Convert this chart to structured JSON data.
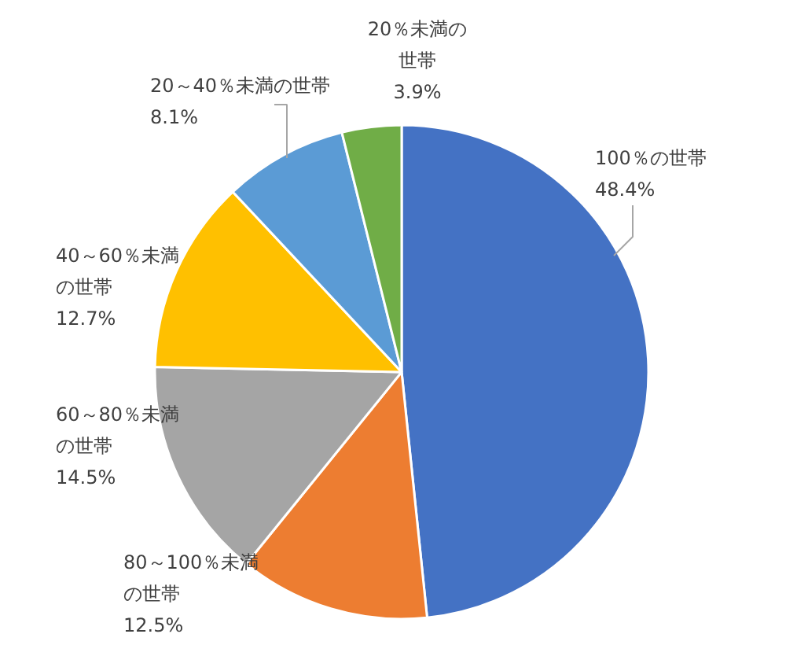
{
  "chart_data": {
    "type": "pie",
    "categories": [
      "100％の世帯",
      "80～100％未満の世帯",
      "60～80％未満の世帯",
      "40～60％未満の世帯",
      "20～40％未満の世帯",
      "20％未満の世帯"
    ],
    "values": [
      48.4,
      12.5,
      14.5,
      12.7,
      8.1,
      3.9
    ],
    "value_labels": [
      "48.4%",
      "12.5%",
      "14.5%",
      "12.7%",
      "8.1%",
      "3.9%"
    ],
    "colors": [
      "#4472c4",
      "#ed7d31",
      "#a5a5a5",
      "#ffc000",
      "#5b9bd5",
      "#70ad47"
    ]
  }
}
